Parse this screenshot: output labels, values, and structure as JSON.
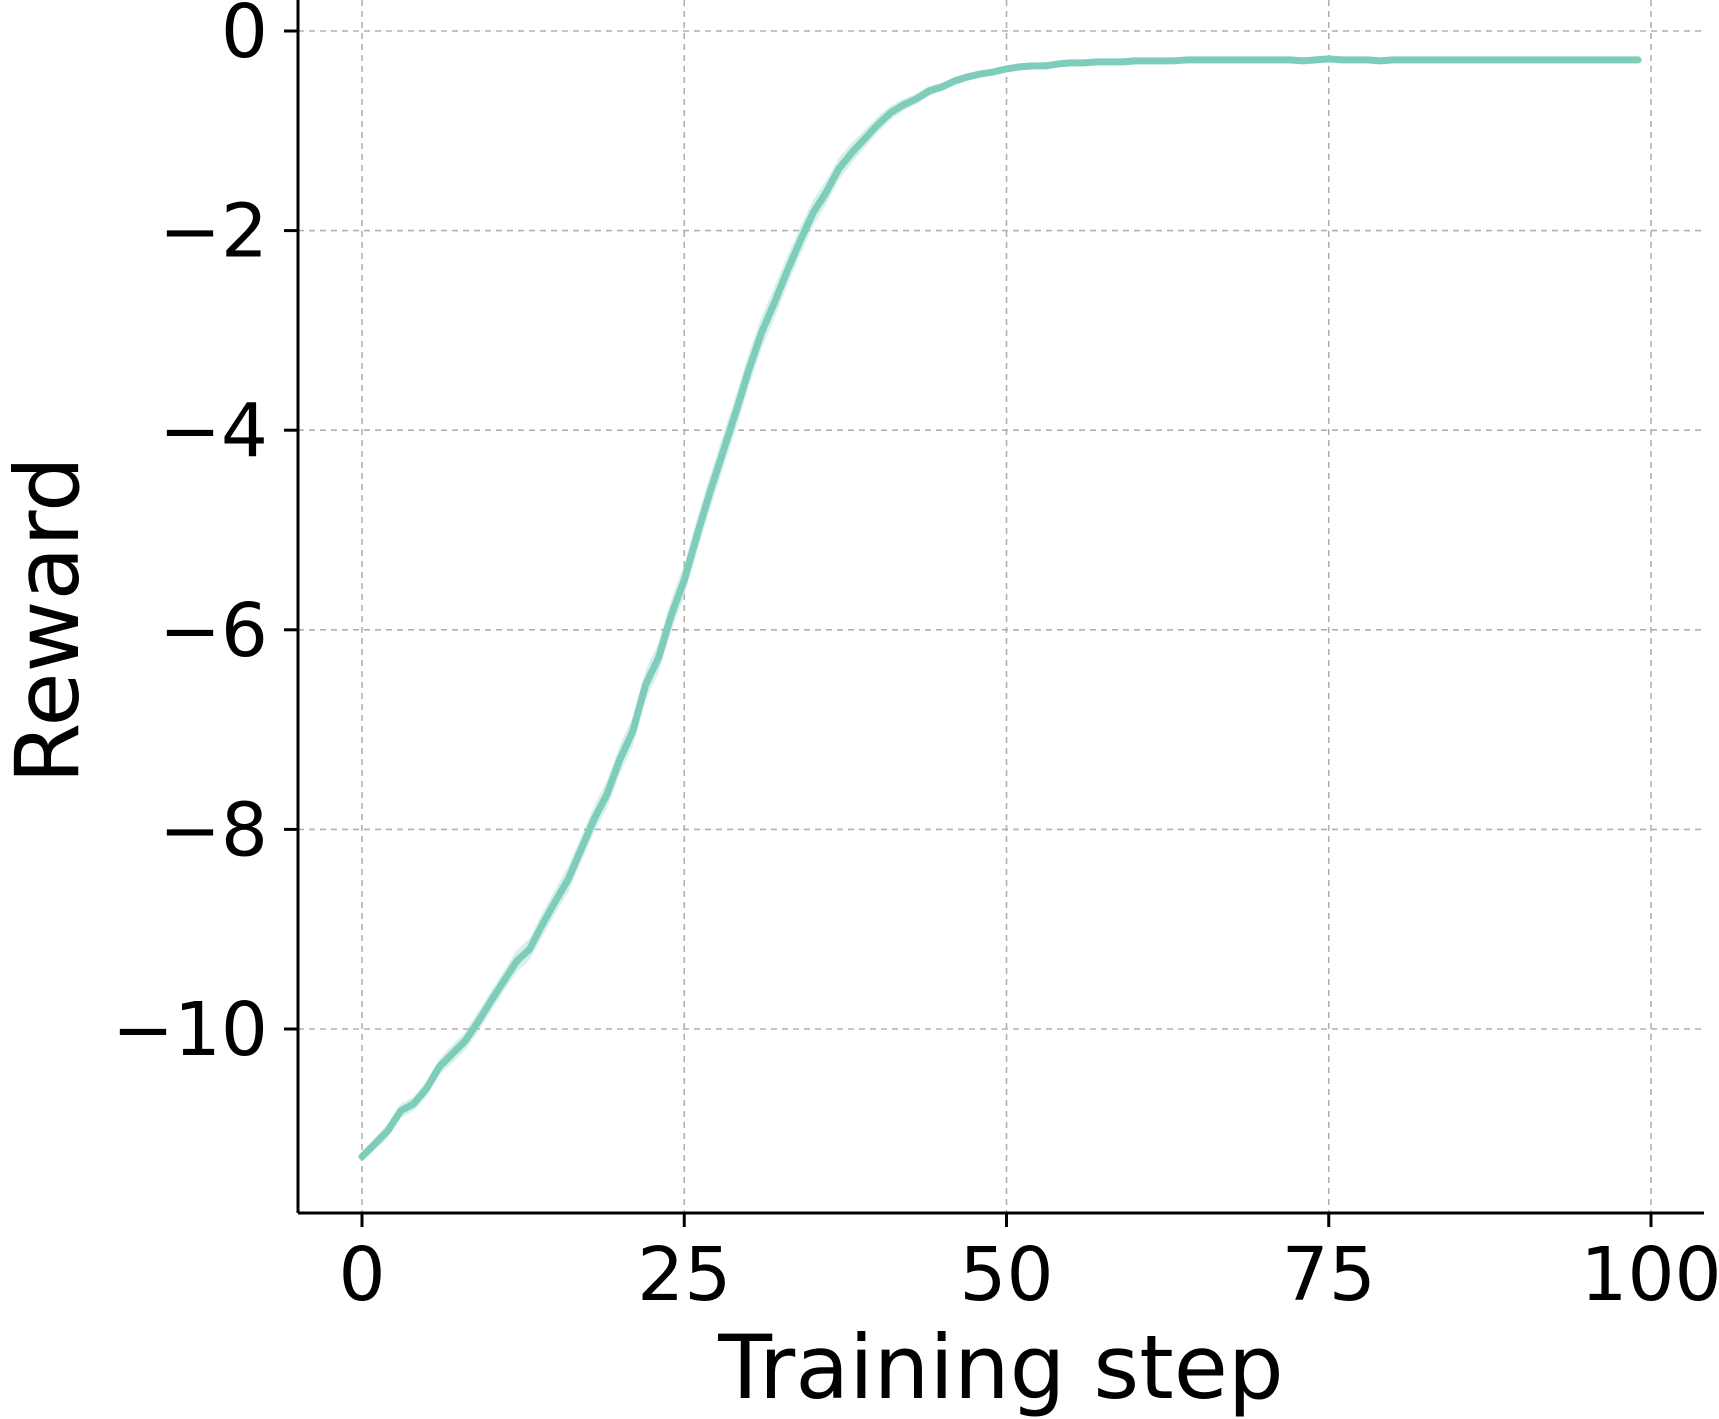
{
  "chart_data": {
    "type": "line",
    "title": "",
    "xlabel": "Training step",
    "ylabel": "Reward",
    "xlim": [
      -2,
      104
    ],
    "ylim": [
      -11.75,
      0.3
    ],
    "xticks": [
      0,
      25,
      50,
      75,
      100
    ],
    "xtick_labels": [
      "0",
      "25",
      "50",
      "75",
      "100"
    ],
    "yticks": [
      0,
      -2,
      -4,
      -6,
      -8,
      -10
    ],
    "ytick_labels": [
      "0",
      "−2",
      "−4",
      "−6",
      "−8",
      "−10"
    ],
    "grid": true,
    "grid_style": "dashed",
    "colors": {
      "line": "#7ecdbb",
      "band": "#7ecdbb"
    },
    "series": [
      {
        "x": [
          0,
          1,
          2,
          3,
          4,
          5,
          6,
          7,
          8,
          9,
          10,
          11,
          12,
          13,
          14,
          15,
          16,
          17,
          18,
          19,
          20,
          21,
          22,
          23,
          24,
          25,
          26,
          27,
          28,
          29,
          30,
          31,
          32,
          33,
          34,
          35,
          36,
          37,
          38,
          39,
          40,
          41,
          42,
          43,
          44,
          45,
          46,
          47,
          48,
          49,
          50,
          51,
          52,
          53,
          54,
          55,
          56,
          57,
          58,
          59,
          60,
          61,
          62,
          63,
          64,
          65,
          66,
          67,
          68,
          69,
          70,
          71,
          72,
          73,
          74,
          75,
          76,
          77,
          78,
          79,
          80,
          81,
          82,
          83,
          84,
          85,
          86,
          87,
          88,
          89,
          90,
          91,
          92,
          93,
          94,
          95,
          96,
          97,
          98,
          99
        ],
        "values": [
          -11.28,
          -11.15,
          -11.02,
          -10.82,
          -10.75,
          -10.6,
          -10.38,
          -10.25,
          -10.12,
          -9.93,
          -9.72,
          -9.52,
          -9.32,
          -9.2,
          -8.95,
          -8.72,
          -8.5,
          -8.2,
          -7.9,
          -7.65,
          -7.3,
          -7.02,
          -6.55,
          -6.28,
          -5.85,
          -5.5,
          -5.05,
          -4.62,
          -4.22,
          -3.82,
          -3.4,
          -3.02,
          -2.72,
          -2.4,
          -2.1,
          -1.82,
          -1.62,
          -1.38,
          -1.22,
          -1.08,
          -0.94,
          -0.82,
          -0.74,
          -0.68,
          -0.6,
          -0.56,
          -0.5,
          -0.46,
          -0.43,
          -0.41,
          -0.38,
          -0.36,
          -0.35,
          -0.35,
          -0.33,
          -0.32,
          -0.32,
          -0.31,
          -0.31,
          -0.31,
          -0.3,
          -0.3,
          -0.3,
          -0.3,
          -0.29,
          -0.29,
          -0.29,
          -0.29,
          -0.29,
          -0.29,
          -0.29,
          -0.29,
          -0.29,
          -0.3,
          -0.29,
          -0.28,
          -0.29,
          -0.29,
          -0.29,
          -0.3,
          -0.29,
          -0.29,
          -0.29,
          -0.29,
          -0.29,
          -0.29,
          -0.29,
          -0.29,
          -0.29,
          -0.29,
          -0.29,
          -0.29,
          -0.29,
          -0.29,
          -0.29,
          -0.29,
          -0.29,
          -0.29,
          -0.29,
          -0.29
        ],
        "band_halfwidth": [
          0.05,
          0.06,
          0.07,
          0.07,
          0.07,
          0.08,
          0.08,
          0.09,
          0.09,
          0.1,
          0.1,
          0.1,
          0.11,
          0.11,
          0.12,
          0.12,
          0.13,
          0.13,
          0.13,
          0.14,
          0.14,
          0.15,
          0.15,
          0.15,
          0.16,
          0.16,
          0.17,
          0.17,
          0.17,
          0.17,
          0.17,
          0.16,
          0.16,
          0.15,
          0.14,
          0.13,
          0.12,
          0.11,
          0.1,
          0.09,
          0.08,
          0.07,
          0.06,
          0.05,
          0.05,
          0.04,
          0.04,
          0.04,
          0.03,
          0.03,
          0.03,
          0.03,
          0.03,
          0.03,
          0.03,
          0.03,
          0.03,
          0.03,
          0.03,
          0.03,
          0.03,
          0.03,
          0.03,
          0.03,
          0.03,
          0.03,
          0.03,
          0.03,
          0.03,
          0.03,
          0.03,
          0.03,
          0.03,
          0.03,
          0.03,
          0.03,
          0.03,
          0.03,
          0.03,
          0.03,
          0.03,
          0.03,
          0.03,
          0.03,
          0.03,
          0.03,
          0.03,
          0.03,
          0.03,
          0.03,
          0.03,
          0.03,
          0.03,
          0.03,
          0.03,
          0.03,
          0.03,
          0.03,
          0.03,
          0.03
        ]
      }
    ]
  }
}
